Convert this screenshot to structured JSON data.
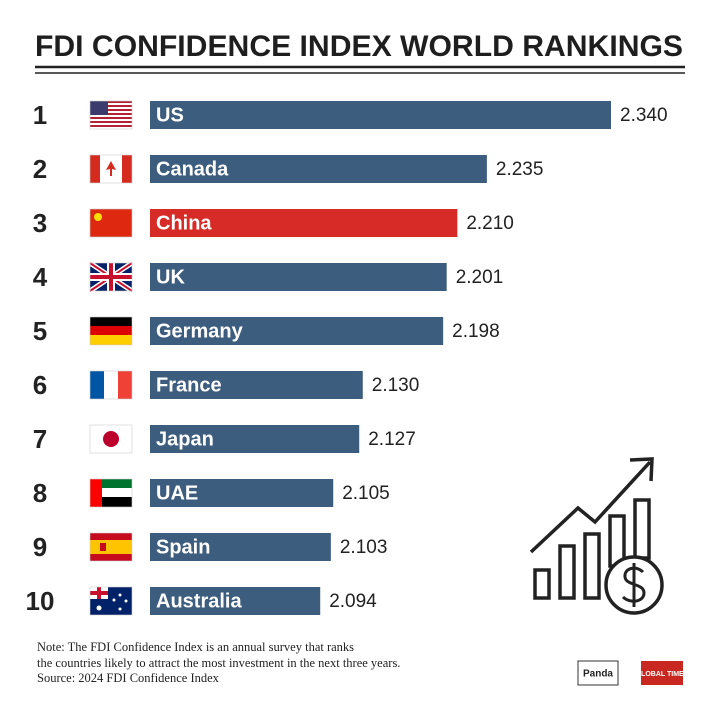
{
  "chart_data": {
    "type": "hbar",
    "title": "FDI CONFIDENCE INDEX WORLD RANKINGS",
    "ranks": [
      1,
      2,
      3,
      4,
      5,
      6,
      7,
      8,
      9,
      10
    ],
    "categories": [
      "US",
      "Canada",
      "China",
      "UK",
      "Germany",
      "France",
      "Japan",
      "UAE",
      "Spain",
      "Australia"
    ],
    "values": [
      2.34,
      2.235,
      2.21,
      2.201,
      2.198,
      2.13,
      2.127,
      2.105,
      2.103,
      2.094
    ],
    "value_labels": [
      "2.340",
      "2.235",
      "2.210",
      "2.201",
      "2.198",
      "2.130",
      "2.127",
      "2.105",
      "2.103",
      "2.094"
    ],
    "colors": [
      "#3d5d7f",
      "#3d5d7f",
      "#d62b26",
      "#3d5d7f",
      "#3d5d7f",
      "#3d5d7f",
      "#3d5d7f",
      "#3d5d7f",
      "#3d5d7f",
      "#3d5d7f"
    ],
    "xlim": [
      1.95,
      2.34
    ],
    "notes": [
      "Note: The FDI Confidence Index is an annual survey that ranks",
      "the countries likely to attract the most investment in the next three years.",
      "Source: 2024 FDI Confidence Index"
    ],
    "logos": [
      "Panda",
      "GLOBAL TIMES"
    ]
  }
}
